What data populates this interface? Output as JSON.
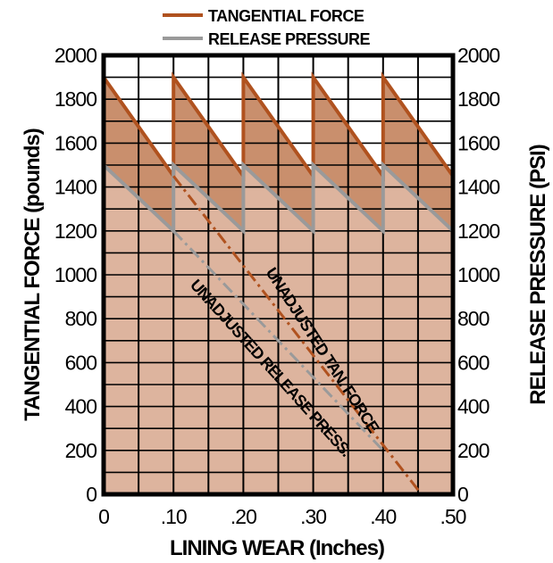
{
  "chart_data": {
    "type": "line",
    "title": "",
    "xlabel": "LINING WEAR (Inches)",
    "ylabel_left": "TANGENTIAL FORCE (pounds)",
    "ylabel_right": "RELEASE PRESSURE (PSI)",
    "xlim": [
      0,
      0.5
    ],
    "ylim": [
      0,
      2000
    ],
    "x_ticks": [
      "0",
      ".10",
      ".20",
      ".30",
      ".40",
      ".50"
    ],
    "y_ticks_left": [
      "0",
      "200",
      "400",
      "600",
      "800",
      "1000",
      "1200",
      "1400",
      "1600",
      "1800",
      "2000"
    ],
    "y_ticks_right": [
      "0",
      "200",
      "400",
      "600",
      "800",
      "1000",
      "1200",
      "1400",
      "1600",
      "1800",
      "2000"
    ],
    "grid": true,
    "legend_position": "top",
    "series": [
      {
        "name": "TANGENTIAL FORCE",
        "color": "#b0521f",
        "style": "solid",
        "x": [
          0,
          0.1,
          0.1,
          0.2,
          0.2,
          0.3,
          0.3,
          0.4,
          0.4,
          0.5
        ],
        "y": [
          1900,
          1450,
          1900,
          1450,
          1900,
          1450,
          1900,
          1450,
          1900,
          1450
        ]
      },
      {
        "name": "RELEASE PRESSURE",
        "color": "#9a9a9a",
        "style": "solid",
        "x": [
          0,
          0.1,
          0.1,
          0.2,
          0.2,
          0.3,
          0.3,
          0.4,
          0.4,
          0.5
        ],
        "y": [
          1500,
          1200,
          1500,
          1200,
          1500,
          1200,
          1500,
          1200,
          1500,
          1200
        ]
      },
      {
        "name": "UNADJUSTED TAN. FORCE",
        "color": "#b0521f",
        "style": "dashed",
        "x": [
          0.1,
          0.455
        ],
        "y": [
          1450,
          0
        ]
      },
      {
        "name": "UNADJUSTED RELEASE PRESS.",
        "color": "#9a9a9a",
        "style": "dashed",
        "x": [
          0.1,
          0.4
        ],
        "y": [
          1200,
          200
        ]
      }
    ],
    "annotations": [
      "UNADJUSTED TAN. FORCE",
      "UNADJUSTED RELEASE PRESS."
    ],
    "colors": {
      "fill_light": "#ddb49e",
      "fill_dark": "#c98f6d",
      "tangential": "#b0521f",
      "release": "#9a9a9a"
    }
  }
}
